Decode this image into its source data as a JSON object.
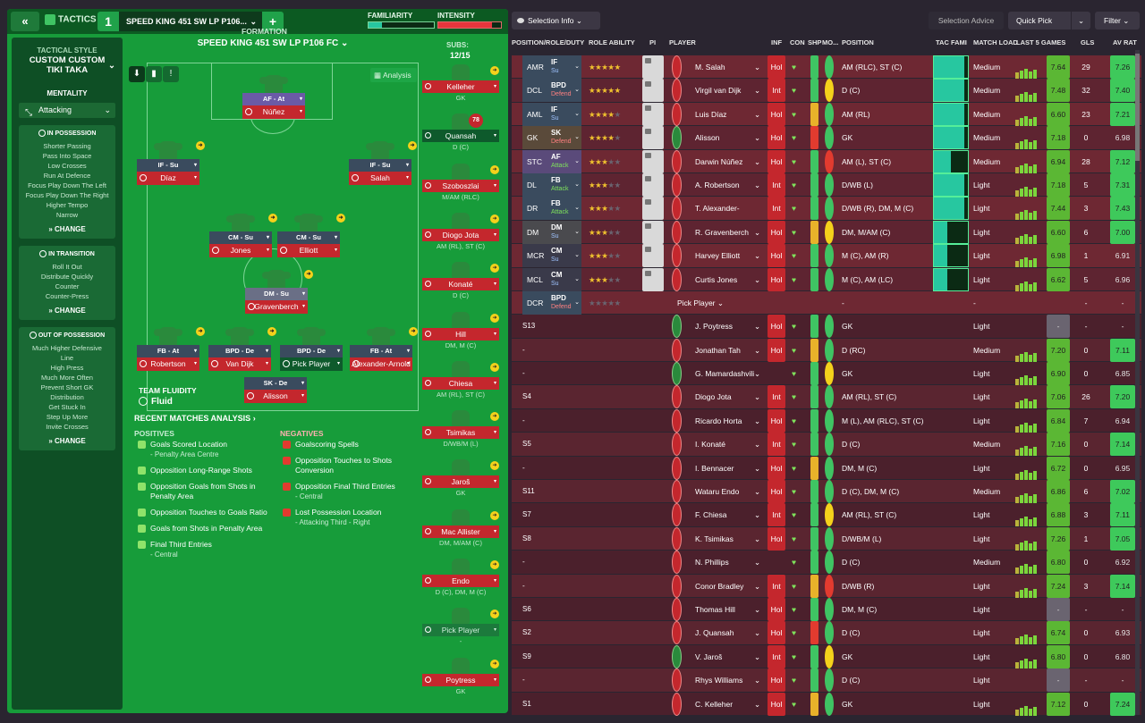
{
  "topbar": {
    "tactics_label": "TACTICS",
    "slot_number": "1",
    "tactic_name": "SPEED KING 451 SW LP P106...",
    "familiarity_label": "FAMILIARITY",
    "intensity_label": "INTENSITY",
    "familiarity_level": 0.2,
    "intensity_level": 0.85
  },
  "style": {
    "title": "TACTICAL STYLE",
    "name1": "CUSTOM CUSTOM",
    "name2": "TIKI TAKA",
    "mentality_label": "MENTALITY",
    "mentality_value": "Attacking",
    "in_possession": {
      "title": "IN POSSESSION",
      "items": [
        "Shorter Passing",
        "Pass Into Space",
        "Low Crosses",
        "Run At Defence",
        "Focus Play Down The Left",
        "Focus Play Down The Right",
        "Higher Tempo",
        "Narrow"
      ],
      "change": "CHANGE"
    },
    "in_transition": {
      "title": "IN TRANSITION",
      "items": [
        "Roll It Out",
        "Distribute Quickly",
        "Counter",
        "Counter-Press"
      ],
      "change": "CHANGE"
    },
    "out_of_possession": {
      "title": "OUT OF POSSESSION",
      "items": [
        "Much Higher Defensive",
        "Line",
        "High Press",
        "Much More Often",
        "Prevent Short GK",
        "Distribution",
        "Get Stuck In",
        "Step Up More",
        "Invite Crosses"
      ],
      "change": "CHANGE"
    }
  },
  "pitch": {
    "formation_label": "FORMATION",
    "formation_name": "SPEED KING 451 SW LP P106 FC",
    "analysis": "Analysis",
    "subs_label": "SUBS:",
    "subs_count": "12/15",
    "fluidity_label": "TEAM FLUIDITY",
    "fluidity_value": "Fluid",
    "players": [
      {
        "role": "AF - At",
        "name": "Núñez"
      },
      {
        "role": "IF - Su",
        "name": "Díaz"
      },
      {
        "role": "IF - Su",
        "name": "Salah"
      },
      {
        "role": "CM - Su",
        "name": "Jones"
      },
      {
        "role": "CM - Su",
        "name": "Elliott"
      },
      {
        "role": "DM - Su",
        "name": "Gravenberch"
      },
      {
        "role": "FB - At",
        "name": "Robertson"
      },
      {
        "role": "BPD - De",
        "name": "Van Dijk"
      },
      {
        "role": "BPD - De",
        "name": "Pick Player"
      },
      {
        "role": "FB - At",
        "name": "Alexander-Arnold"
      },
      {
        "role": "SK - De",
        "name": "Alisson"
      }
    ],
    "subs": [
      {
        "name": "Kelleher",
        "pos": "GK"
      },
      {
        "name": "Quansah",
        "pos": "D (C)",
        "badge": "78"
      },
      {
        "name": "Szoboszlai",
        "pos": "M/AM (RLC)"
      },
      {
        "name": "Diogo Jota",
        "pos": "AM (RL), ST (C)"
      },
      {
        "name": "Konaté",
        "pos": "D (C)"
      },
      {
        "name": "Hill",
        "pos": "DM, M (C)"
      },
      {
        "name": "Chiesa",
        "pos": "AM (RL), ST (C)"
      },
      {
        "name": "Tsimikas",
        "pos": "D/WB/M (L)"
      },
      {
        "name": "Jaroš",
        "pos": "GK"
      },
      {
        "name": "Mac Allister",
        "pos": "DM, M/AM (C)"
      },
      {
        "name": "Endo",
        "pos": "D (C), DM, M (C)"
      },
      {
        "name": "Pick Player",
        "pos": "-"
      },
      {
        "name": "Poytress",
        "pos": "GK"
      }
    ]
  },
  "analysis": {
    "title": "RECENT MATCHES ANALYSIS",
    "positives_label": "POSITIVES",
    "negatives_label": "NEGATIVES",
    "positives": [
      {
        "t": "Goals Scored Location",
        "s": "- Penalty Area Centre"
      },
      {
        "t": "Opposition Long-Range Shots",
        "s": ""
      },
      {
        "t": "Opposition Goals from Shots in Penalty Area",
        "s": ""
      },
      {
        "t": "Opposition Touches to Goals Ratio",
        "s": ""
      },
      {
        "t": "Goals from Shots in Penalty Area",
        "s": ""
      },
      {
        "t": "Final Third Entries",
        "s": "- Central"
      }
    ],
    "negatives": [
      {
        "t": "Goalscoring Spells",
        "s": ""
      },
      {
        "t": "Opposition Touches to Shots Conversion",
        "s": ""
      },
      {
        "t": "Opposition Final Third Entries",
        "s": "- Central"
      },
      {
        "t": "Lost Possession Location",
        "s": "- Attacking Third - Right"
      }
    ]
  },
  "right": {
    "selection_info": "Selection Info",
    "selection_advice": "Selection Advice",
    "quick_pick": "Quick Pick",
    "filter": "Filter",
    "headers": [
      "POSITION/ROLE/DUTY",
      "ROLE ABILITY",
      "PI",
      "PLAYER",
      "INF",
      "CON",
      "SHP",
      "MO...",
      "POSITION",
      "TAC FAMI",
      "MATCH LOAD",
      "LAST 5 GAMES",
      "GLS",
      "AV RAT"
    ],
    "rows": [
      {
        "slot": "AMR",
        "role": "IF",
        "duty": "Su",
        "stars": 4.5,
        "name": "M. Salah",
        "inf": "Hol",
        "pos": "AM (RLC), ST (C)",
        "tf": 0.9,
        "load": "Medium",
        "l5": "7.64",
        "gls": "29",
        "av": "7.26"
      },
      {
        "slot": "DCL",
        "role": "BPD",
        "duty": "Defend",
        "stars": 4.5,
        "name": "Virgil van Dijk",
        "inf": "Int",
        "pos": "D (C)",
        "tf": 0.9,
        "load": "Medium",
        "l5": "7.48",
        "gls": "32",
        "av": "7.40"
      },
      {
        "slot": "AML",
        "role": "IF",
        "duty": "Su",
        "stars": 4,
        "name": "Luis Díaz",
        "inf": "Hol",
        "pos": "AM (RL)",
        "tf": 0.9,
        "load": "Medium",
        "l5": "6.60",
        "gls": "23",
        "av": "7.21"
      },
      {
        "slot": "GK",
        "role": "SK",
        "duty": "Defend",
        "stars": 4,
        "name": "Alisson",
        "inf": "Hol",
        "pos": "GK",
        "tf": 0.9,
        "load": "Medium",
        "l5": "7.18",
        "gls": "0",
        "av": "6.98"
      },
      {
        "slot": "STC",
        "role": "AF",
        "duty": "Attack",
        "stars": 3,
        "name": "Darwin Núñez",
        "inf": "Hol",
        "pos": "AM (L), ST (C)",
        "tf": 0.5,
        "load": "Medium",
        "l5": "6.94",
        "gls": "28",
        "av": "7.12"
      },
      {
        "slot": "DL",
        "role": "FB",
        "duty": "Attack",
        "stars": 3,
        "name": "A. Robertson",
        "inf": "Int",
        "pos": "D/WB (L)",
        "tf": 0.9,
        "load": "Light",
        "l5": "7.18",
        "gls": "5",
        "av": "7.31"
      },
      {
        "slot": "DR",
        "role": "FB",
        "duty": "Attack",
        "stars": 3,
        "name": "T. Alexander-Arnold",
        "inf": "Int",
        "pos": "D/WB (R), DM, M (C)",
        "tf": 0.9,
        "load": "Light",
        "l5": "7.44",
        "gls": "3",
        "av": "7.43"
      },
      {
        "slot": "DM",
        "role": "DM",
        "duty": "Su",
        "stars": 2.5,
        "name": "R. Gravenberch",
        "inf": "Hol",
        "pos": "DM, M/AM (C)",
        "tf": 0.4,
        "load": "Light",
        "l5": "6.60",
        "gls": "6",
        "av": "7.00"
      },
      {
        "slot": "MCR",
        "role": "CM",
        "duty": "Su",
        "stars": 2.5,
        "name": "Harvey Elliott",
        "inf": "Hol",
        "pos": "M (C), AM (R)",
        "tf": 0.4,
        "load": "Light",
        "l5": "6.98",
        "gls": "1",
        "av": "6.91"
      },
      {
        "slot": "MCL",
        "role": "CM",
        "duty": "Su",
        "stars": 2.5,
        "name": "Curtis Jones",
        "inf": "Hol",
        "pos": "M (C), AM (LC)",
        "tf": 0.4,
        "load": "Light",
        "l5": "6.62",
        "gls": "5",
        "av": "6.96"
      },
      {
        "slot": "DCR",
        "role": "BPD",
        "duty": "Defend",
        "stars": 0,
        "name": "Pick Player",
        "inf": "",
        "pos": "-",
        "tf": 0,
        "load": "-",
        "l5": "",
        "gls": "-",
        "av": "-"
      },
      {
        "slot": "S13",
        "role": "",
        "duty": "",
        "stars": 0,
        "name": "J. Poytress",
        "inf": "Hol",
        "pos": "GK",
        "tf": 0,
        "load": "Light",
        "l5": "-",
        "gls": "-",
        "av": "-"
      },
      {
        "slot": "-",
        "role": "",
        "duty": "",
        "stars": 0,
        "name": "Jonathan Tah",
        "inf": "Hol",
        "pos": "D (RC)",
        "tf": 0,
        "load": "Medium",
        "l5": "7.20",
        "gls": "0",
        "av": "7.11"
      },
      {
        "slot": "-",
        "role": "",
        "duty": "",
        "stars": 0,
        "name": "G. Mamardashvili",
        "inf": "",
        "pos": "GK",
        "tf": 0,
        "load": "Light",
        "l5": "6.90",
        "gls": "0",
        "av": "6.85"
      },
      {
        "slot": "S4",
        "role": "",
        "duty": "",
        "stars": 0,
        "name": "Diogo Jota",
        "inf": "Int",
        "pos": "AM (RL), ST (C)",
        "tf": 0,
        "load": "Light",
        "l5": "7.06",
        "gls": "26",
        "av": "7.20"
      },
      {
        "slot": "-",
        "role": "",
        "duty": "",
        "stars": 0,
        "name": "Ricardo Horta",
        "inf": "Hol",
        "pos": "M (L), AM (RLC), ST (C)",
        "tf": 0,
        "load": "Light",
        "l5": "6.84",
        "gls": "7",
        "av": "6.94"
      },
      {
        "slot": "S5",
        "role": "",
        "duty": "",
        "stars": 0,
        "name": "I. Konaté",
        "inf": "Int",
        "pos": "D (C)",
        "tf": 0,
        "load": "Medium",
        "l5": "7.16",
        "gls": "0",
        "av": "7.14"
      },
      {
        "slot": "-",
        "role": "",
        "duty": "",
        "stars": 0,
        "name": "I. Bennacer",
        "inf": "Hol",
        "pos": "DM, M (C)",
        "tf": 0,
        "load": "Light",
        "l5": "6.72",
        "gls": "0",
        "av": "6.95"
      },
      {
        "slot": "S11",
        "role": "",
        "duty": "",
        "stars": 0,
        "name": "Wataru Endo",
        "inf": "Hol",
        "pos": "D (C), DM, M (C)",
        "tf": 0,
        "load": "Medium",
        "l5": "6.86",
        "gls": "6",
        "av": "7.02"
      },
      {
        "slot": "S7",
        "role": "",
        "duty": "",
        "stars": 0,
        "name": "F. Chiesa",
        "inf": "Int",
        "pos": "AM (RL), ST (C)",
        "tf": 0,
        "load": "Light",
        "l5": "6.88",
        "gls": "3",
        "av": "7.11"
      },
      {
        "slot": "S8",
        "role": "",
        "duty": "",
        "stars": 0,
        "name": "K. Tsimikas",
        "inf": "Hol",
        "pos": "D/WB/M (L)",
        "tf": 0,
        "load": "Light",
        "l5": "7.26",
        "gls": "1",
        "av": "7.05"
      },
      {
        "slot": "-",
        "role": "",
        "duty": "",
        "stars": 0,
        "name": "N. Phillips",
        "inf": "",
        "pos": "D (C)",
        "tf": 0,
        "load": "Medium",
        "l5": "6.80",
        "gls": "0",
        "av": "6.92"
      },
      {
        "slot": "-",
        "role": "",
        "duty": "",
        "stars": 0,
        "name": "Conor Bradley",
        "inf": "Int",
        "pos": "D/WB (R)",
        "tf": 0,
        "load": "Light",
        "l5": "7.24",
        "gls": "3",
        "av": "7.14"
      },
      {
        "slot": "S6",
        "role": "",
        "duty": "",
        "stars": 0,
        "name": "Thomas Hill",
        "inf": "Hol",
        "pos": "DM, M (C)",
        "tf": 0,
        "load": "Light",
        "l5": "-",
        "gls": "-",
        "av": "-"
      },
      {
        "slot": "S2",
        "role": "",
        "duty": "",
        "stars": 0,
        "name": "J. Quansah",
        "inf": "Hol",
        "pos": "D (C)",
        "tf": 0,
        "load": "Light",
        "l5": "6.74",
        "gls": "0",
        "av": "6.93"
      },
      {
        "slot": "S9",
        "role": "",
        "duty": "",
        "stars": 0,
        "name": "V. Jaroš",
        "inf": "Int",
        "pos": "GK",
        "tf": 0,
        "load": "Light",
        "l5": "6.80",
        "gls": "0",
        "av": "6.80"
      },
      {
        "slot": "-",
        "role": "",
        "duty": "",
        "stars": 0,
        "name": "Rhys Williams",
        "inf": "Hol",
        "pos": "D (C)",
        "tf": 0,
        "load": "Light",
        "l5": "-",
        "gls": "-",
        "av": "-"
      },
      {
        "slot": "S1",
        "role": "",
        "duty": "",
        "stars": 0,
        "name": "C. Kelleher",
        "inf": "Hol",
        "pos": "GK",
        "tf": 0,
        "load": "Light",
        "l5": "7.12",
        "gls": "0",
        "av": "7.24"
      }
    ]
  }
}
